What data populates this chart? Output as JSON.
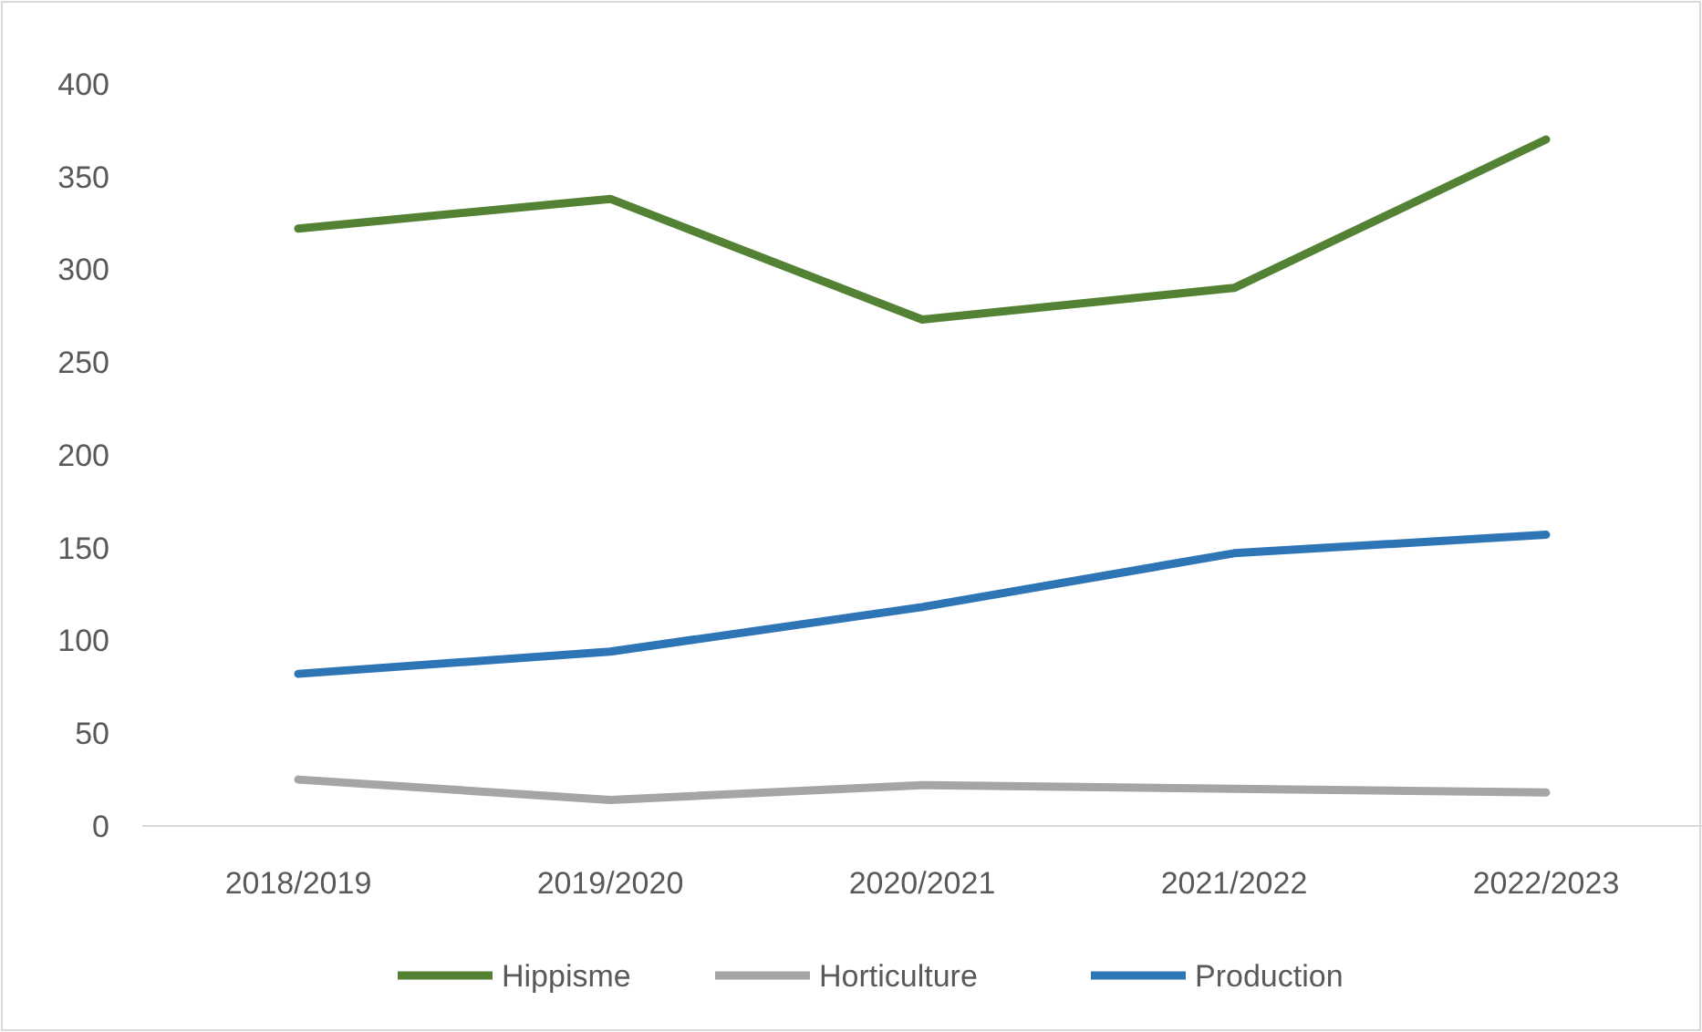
{
  "chart_data": {
    "type": "line",
    "categories": [
      "2018/2019",
      "2019/2020",
      "2020/2021",
      "2021/2022",
      "2022/2023"
    ],
    "ylim": [
      0,
      400
    ],
    "yticks": [
      0,
      50,
      100,
      150,
      200,
      250,
      300,
      350,
      400
    ],
    "grid": false,
    "legend": "bottom",
    "marker": "none",
    "line_style": "solid",
    "series": [
      {
        "name": "Hippisme",
        "color": "#548235",
        "values": [
          322,
          338,
          273,
          290,
          370
        ]
      },
      {
        "name": "Horticulture",
        "color": "#a5a5a5",
        "values": [
          25,
          14,
          22,
          20,
          18
        ]
      },
      {
        "name": "Production",
        "color": "#2e75b6",
        "values": [
          82,
          94,
          118,
          147,
          157
        ]
      }
    ]
  }
}
